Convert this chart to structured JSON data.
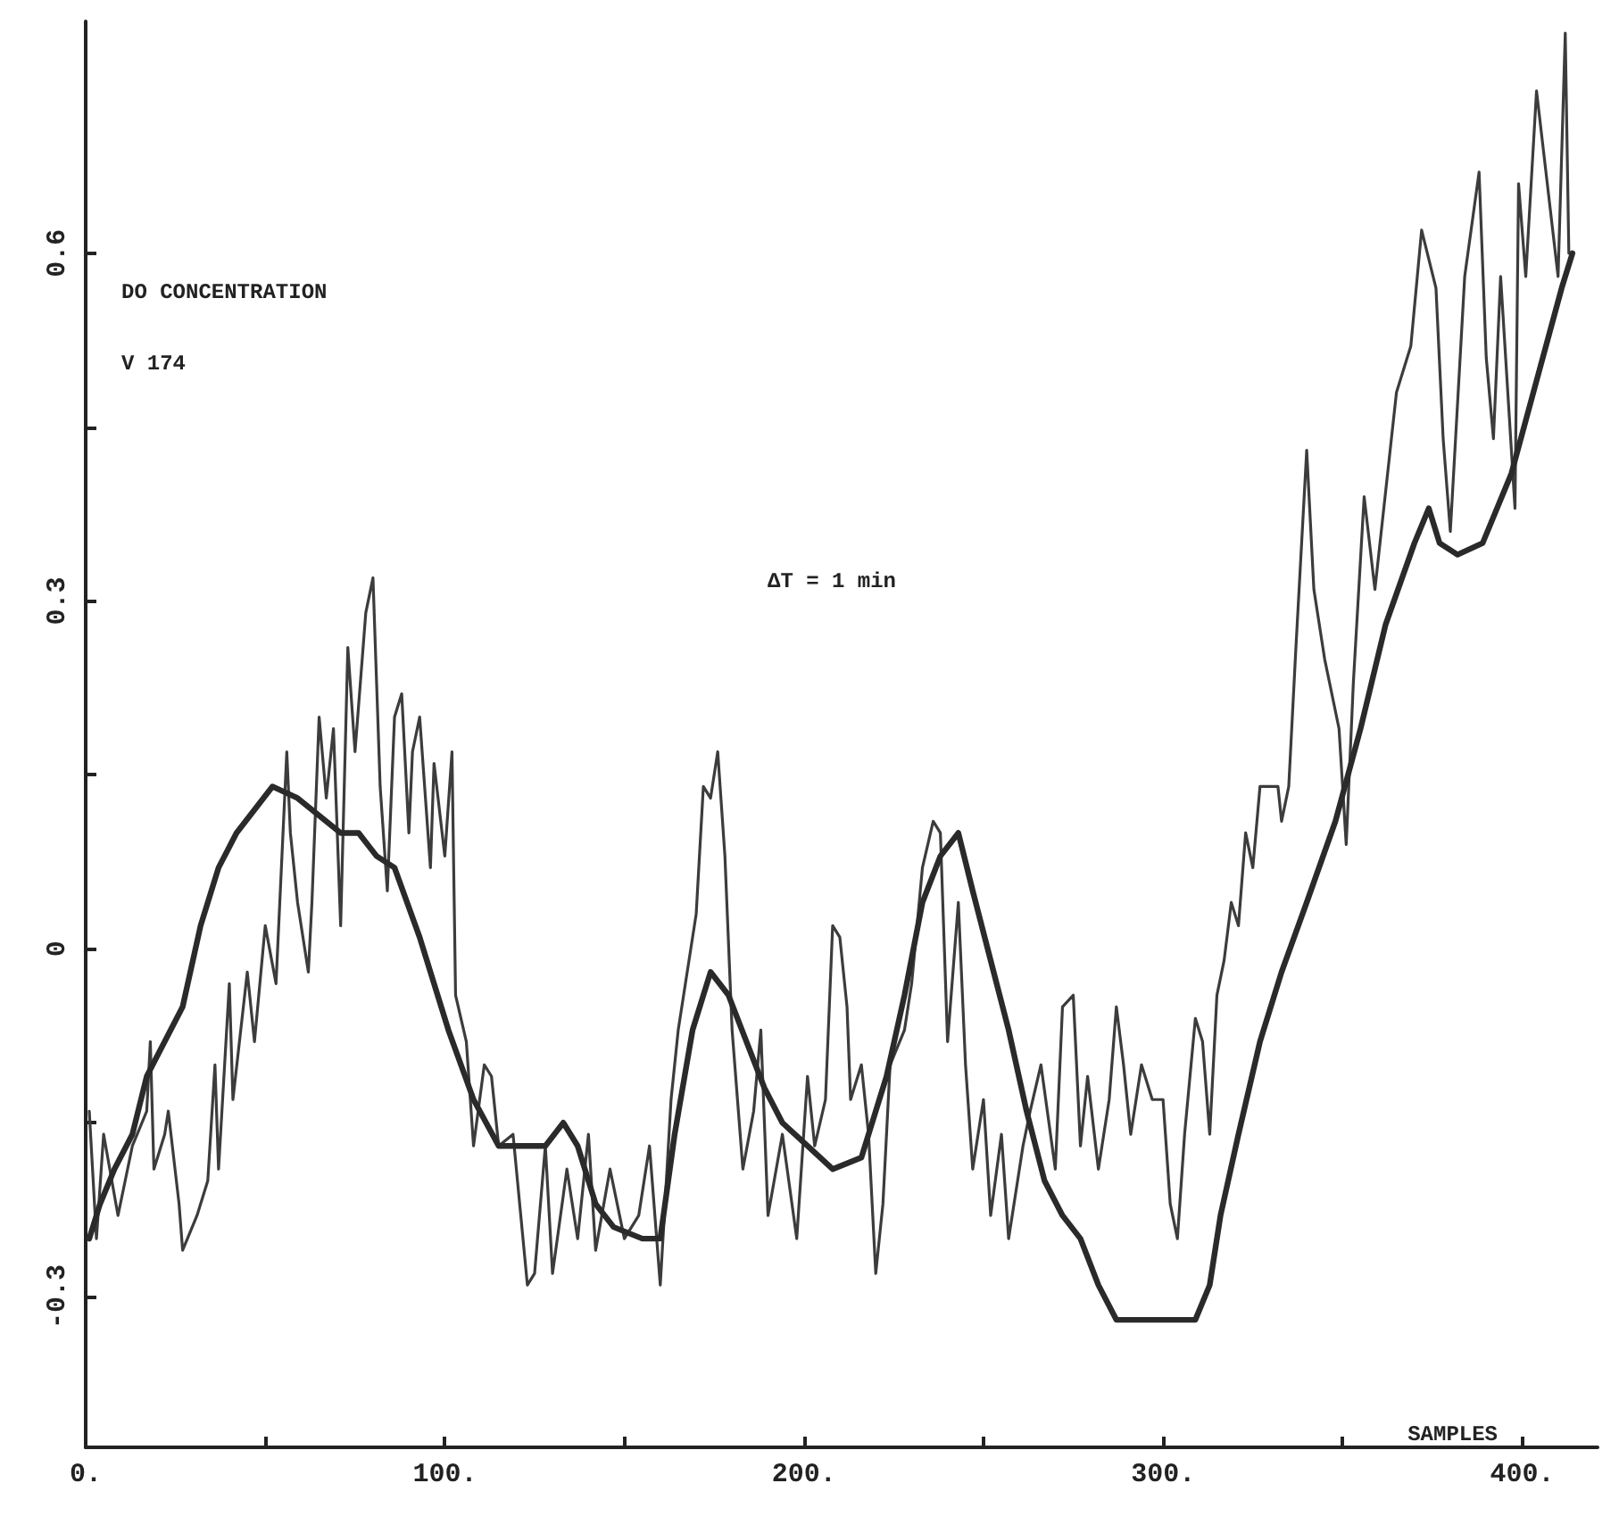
{
  "chart_data": {
    "type": "line",
    "xlabel": "SAMPLES",
    "annotations": [
      "DO CONCENTRATION",
      "V 174",
      "ΔT = 1 min"
    ],
    "xlim": [
      0,
      421
    ],
    "ylim": [
      -0.43,
      0.8
    ],
    "xticks": [
      {
        "value": 0,
        "label": "0."
      },
      {
        "value": 50,
        "label": null
      },
      {
        "value": 100,
        "label": "100."
      },
      {
        "value": 150,
        "label": null
      },
      {
        "value": 200,
        "label": "200."
      },
      {
        "value": 250,
        "label": null
      },
      {
        "value": 300,
        "label": "300."
      },
      {
        "value": 350,
        "label": null
      },
      {
        "value": 400,
        "label": "400."
      }
    ],
    "yticks": [
      {
        "value": -0.3,
        "label": "-0.3"
      },
      {
        "value": -0.15,
        "label": null
      },
      0,
      {
        "value": 0.15,
        "label": null
      },
      0.3,
      {
        "value": 0.45,
        "label": null
      },
      0.6
    ],
    "grid": false,
    "marker": "none",
    "line_style": "solid",
    "series": [
      {
        "color": "#3c3c3c",
        "x": [
          1,
          3,
          5,
          9,
          13,
          17,
          18,
          19,
          22,
          23,
          26,
          27,
          31,
          34,
          36,
          37,
          40,
          41,
          45,
          47,
          50,
          53,
          56,
          57,
          59,
          62,
          63,
          65,
          67,
          69,
          71,
          73,
          75,
          78,
          80,
          82,
          84,
          86,
          88,
          90,
          91,
          93,
          96,
          97,
          100,
          102,
          103,
          106,
          108,
          111,
          113,
          115,
          119,
          123,
          125,
          128,
          130,
          134,
          137,
          140,
          142,
          146,
          150,
          154,
          157,
          160,
          163,
          165,
          167,
          170,
          172,
          174,
          176,
          178,
          180,
          183,
          186,
          188,
          190,
          194,
          198,
          201,
          203,
          206,
          208,
          210,
          212,
          213,
          216,
          218,
          220,
          222,
          224,
          228,
          230,
          233,
          236,
          238,
          240,
          243,
          245,
          247,
          250,
          252,
          255,
          257,
          261,
          263,
          266,
          270,
          272,
          275,
          277,
          279,
          282,
          285,
          287,
          289,
          291,
          294,
          297,
          300,
          302,
          304,
          306,
          309,
          311,
          313,
          315,
          317,
          319,
          321,
          323,
          325,
          327,
          329,
          332,
          333,
          335,
          337,
          340,
          342,
          345,
          349,
          351,
          353,
          356,
          359,
          365,
          369,
          372,
          376,
          378,
          380,
          384,
          388,
          390,
          392,
          394,
          397,
          398,
          399,
          401,
          404,
          407,
          410,
          412,
          413
        ],
        "values": [
          -0.14,
          -0.25,
          -0.16,
          -0.23,
          -0.17,
          -0.14,
          -0.08,
          -0.19,
          -0.16,
          -0.14,
          -0.22,
          -0.26,
          -0.23,
          -0.2,
          -0.1,
          -0.19,
          -0.03,
          -0.13,
          -0.02,
          -0.08,
          0.02,
          -0.03,
          0.17,
          0.1,
          0.04,
          -0.02,
          0.04,
          0.2,
          0.13,
          0.19,
          0.02,
          0.26,
          0.17,
          0.29,
          0.32,
          0.14,
          0.05,
          0.2,
          0.22,
          0.1,
          0.17,
          0.2,
          0.07,
          0.16,
          0.08,
          0.17,
          -0.04,
          -0.08,
          -0.17,
          -0.1,
          -0.11,
          -0.17,
          -0.16,
          -0.29,
          -0.28,
          -0.17,
          -0.28,
          -0.19,
          -0.25,
          -0.16,
          -0.26,
          -0.19,
          -0.25,
          -0.23,
          -0.17,
          -0.29,
          -0.13,
          -0.07,
          -0.03,
          0.03,
          0.14,
          0.13,
          0.17,
          0.08,
          -0.07,
          -0.19,
          -0.14,
          -0.07,
          -0.23,
          -0.16,
          -0.25,
          -0.11,
          -0.17,
          -0.13,
          0.02,
          0.01,
          -0.05,
          -0.13,
          -0.1,
          -0.16,
          -0.28,
          -0.22,
          -0.1,
          -0.07,
          -0.03,
          0.07,
          0.11,
          0.1,
          -0.08,
          0.04,
          -0.1,
          -0.19,
          -0.13,
          -0.23,
          -0.16,
          -0.25,
          -0.17,
          -0.14,
          -0.1,
          -0.19,
          -0.05,
          -0.04,
          -0.17,
          -0.11,
          -0.19,
          -0.13,
          -0.05,
          -0.1,
          -0.16,
          -0.1,
          -0.13,
          -0.13,
          -0.22,
          -0.25,
          -0.16,
          -0.06,
          -0.08,
          -0.16,
          -0.04,
          -0.01,
          0.04,
          0.02,
          0.1,
          0.07,
          0.14,
          0.14,
          0.14,
          0.11,
          0.14,
          0.26,
          0.43,
          0.31,
          0.25,
          0.19,
          0.09,
          0.23,
          0.39,
          0.31,
          0.48,
          0.52,
          0.62,
          0.57,
          0.44,
          0.36,
          0.58,
          0.67,
          0.51,
          0.44,
          0.58,
          0.43,
          0.38,
          0.66,
          0.58,
          0.74,
          0.66,
          0.58,
          0.79,
          0.6
        ]
      },
      {
        "color": "#2a2a2a",
        "x": [
          1,
          4,
          8,
          13,
          17,
          22,
          27,
          32,
          37,
          42,
          47,
          52,
          59,
          67,
          71,
          76,
          81,
          86,
          93,
          101,
          108,
          115,
          123,
          128,
          133,
          137,
          142,
          147,
          155,
          160,
          164,
          169,
          174,
          179,
          184,
          189,
          194,
          201,
          208,
          216,
          223,
          228,
          233,
          238,
          243,
          247,
          252,
          257,
          262,
          267,
          272,
          277,
          282,
          287,
          294,
          301,
          309,
          313,
          316,
          321,
          327,
          333,
          340,
          348,
          355,
          362,
          370,
          374,
          377,
          382,
          389,
          397,
          404,
          411,
          414
        ],
        "values": [
          -0.25,
          -0.22,
          -0.19,
          -0.16,
          -0.11,
          -0.08,
          -0.05,
          0.02,
          0.07,
          0.1,
          0.12,
          0.14,
          0.13,
          0.11,
          0.1,
          0.1,
          0.08,
          0.07,
          0.01,
          -0.07,
          -0.13,
          -0.17,
          -0.17,
          -0.17,
          -0.15,
          -0.17,
          -0.22,
          -0.24,
          -0.25,
          -0.25,
          -0.16,
          -0.07,
          -0.02,
          -0.04,
          -0.08,
          -0.12,
          -0.15,
          -0.17,
          -0.19,
          -0.18,
          -0.11,
          -0.04,
          0.04,
          0.08,
          0.1,
          0.05,
          -0.01,
          -0.07,
          -0.14,
          -0.2,
          -0.23,
          -0.25,
          -0.29,
          -0.32,
          -0.32,
          -0.32,
          -0.32,
          -0.29,
          -0.23,
          -0.16,
          -0.08,
          -0.02,
          0.04,
          0.11,
          0.19,
          0.28,
          0.35,
          0.38,
          0.35,
          0.34,
          0.35,
          0.41,
          0.49,
          0.57,
          0.6
        ]
      }
    ]
  }
}
